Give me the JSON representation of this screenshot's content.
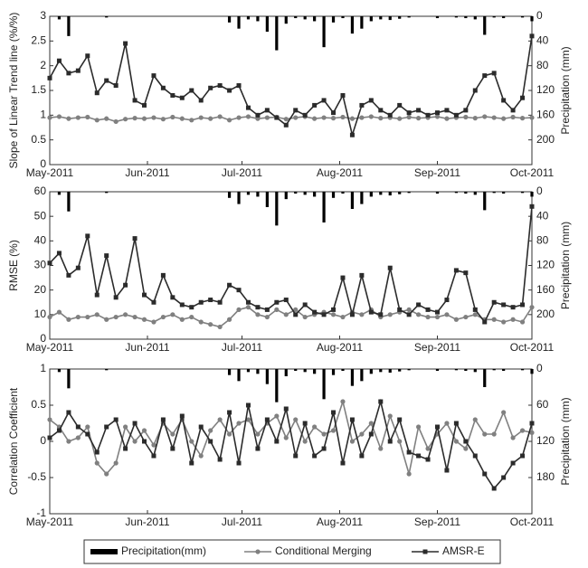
{
  "chart_data": [
    {
      "type": "line",
      "ylabel": "Slope of Linear Trend line (%/%)",
      "y2label": "Precipitation (mm)",
      "xlim": [
        0,
        153
      ],
      "xticks": [
        {
          "value": 0,
          "label": "May-2011"
        },
        {
          "value": 31,
          "label": "Jun-2011"
        },
        {
          "value": 61,
          "label": "Jul-2011"
        },
        {
          "value": 92,
          "label": "Aug-2011"
        },
        {
          "value": 123,
          "label": "Sep-2011"
        },
        {
          "value": 153,
          "label": "Oct-2011"
        }
      ],
      "ylim": [
        0,
        3
      ],
      "yticks": [
        0,
        0.5,
        1,
        1.5,
        2,
        2.5,
        3
      ],
      "y2lim": [
        240,
        0
      ],
      "y2ticks": [
        0,
        40,
        80,
        120,
        160,
        200
      ],
      "x": [
        0,
        3,
        6,
        9,
        12,
        15,
        18,
        21,
        24,
        27,
        30,
        33,
        36,
        39,
        42,
        45,
        48,
        51,
        54,
        57,
        60,
        63,
        66,
        69,
        72,
        75,
        78,
        81,
        84,
        87,
        90,
        93,
        96,
        99,
        102,
        105,
        108,
        111,
        114,
        117,
        120,
        123,
        126,
        129,
        132,
        135,
        138,
        141,
        144,
        147,
        150,
        153
      ],
      "series": [
        {
          "name": "Precipitation(mm)",
          "type": "bar",
          "axis": "y2",
          "color": "#000000",
          "values": [
            0,
            5,
            32,
            0,
            0,
            0,
            2,
            0,
            0,
            0,
            0,
            0,
            0,
            0,
            0,
            0,
            0,
            0,
            0,
            10,
            20,
            5,
            8,
            25,
            55,
            12,
            3,
            5,
            8,
            50,
            10,
            3,
            28,
            20,
            8,
            5,
            6,
            4,
            2,
            0,
            0,
            3,
            0,
            2,
            3,
            5,
            30,
            2,
            3,
            0,
            2,
            8
          ]
        },
        {
          "name": "Conditional Merging",
          "type": "line",
          "marker": "circle",
          "color": "#808080",
          "values": [
            0.95,
            0.97,
            0.93,
            0.95,
            0.96,
            0.9,
            0.93,
            0.87,
            0.92,
            0.94,
            0.93,
            0.95,
            0.92,
            0.96,
            0.93,
            0.9,
            0.95,
            0.93,
            0.97,
            0.9,
            0.95,
            0.97,
            0.93,
            0.95,
            0.96,
            0.92,
            0.95,
            0.97,
            0.93,
            0.95,
            0.94,
            0.96,
            0.93,
            0.95,
            0.97,
            0.94,
            0.95,
            0.93,
            0.96,
            0.94,
            0.95,
            0.97,
            0.93,
            0.95,
            0.96,
            0.94,
            0.97,
            0.95,
            0.93,
            0.96,
            0.94,
            0.95
          ]
        },
        {
          "name": "AMSR-E",
          "type": "line",
          "marker": "square",
          "color": "#2b2b2b",
          "values": [
            1.75,
            2.1,
            1.85,
            1.9,
            2.2,
            1.45,
            1.7,
            1.6,
            2.45,
            1.3,
            1.2,
            1.8,
            1.55,
            1.4,
            1.35,
            1.5,
            1.3,
            1.55,
            1.6,
            1.5,
            1.6,
            1.15,
            1.0,
            1.1,
            0.95,
            0.8,
            1.1,
            1.0,
            1.2,
            1.3,
            1.05,
            1.4,
            0.6,
            1.2,
            1.3,
            1.1,
            1.0,
            1.2,
            1.05,
            1.1,
            1.0,
            1.05,
            1.1,
            1.0,
            1.1,
            1.5,
            1.8,
            1.85,
            1.3,
            1.1,
            1.35,
            2.6
          ]
        }
      ]
    },
    {
      "type": "line",
      "ylabel": "RMSE (%)",
      "y2label": "Precipitation (mm)",
      "xlim": [
        0,
        153
      ],
      "xticks": [
        {
          "value": 0,
          "label": "May-2011"
        },
        {
          "value": 31,
          "label": "Jun-2011"
        },
        {
          "value": 61,
          "label": "Jul-2011"
        },
        {
          "value": 92,
          "label": "Aug-2011"
        },
        {
          "value": 123,
          "label": "Sep-2011"
        },
        {
          "value": 153,
          "label": "Oct-2011"
        }
      ],
      "ylim": [
        0,
        60
      ],
      "yticks": [
        0,
        10,
        20,
        30,
        40,
        50,
        60
      ],
      "y2lim": [
        240,
        0
      ],
      "y2ticks": [
        0,
        40,
        80,
        120,
        160,
        200
      ],
      "x": [
        0,
        3,
        6,
        9,
        12,
        15,
        18,
        21,
        24,
        27,
        30,
        33,
        36,
        39,
        42,
        45,
        48,
        51,
        54,
        57,
        60,
        63,
        66,
        69,
        72,
        75,
        78,
        81,
        84,
        87,
        90,
        93,
        96,
        99,
        102,
        105,
        108,
        111,
        114,
        117,
        120,
        123,
        126,
        129,
        132,
        135,
        138,
        141,
        144,
        147,
        150,
        153
      ],
      "series": [
        {
          "type": "bar",
          "axis": "y2",
          "color": "#000000",
          "values": [
            0,
            5,
            32,
            0,
            0,
            0,
            2,
            0,
            0,
            0,
            0,
            0,
            0,
            0,
            0,
            0,
            0,
            0,
            0,
            10,
            20,
            5,
            8,
            25,
            55,
            12,
            3,
            5,
            8,
            50,
            10,
            3,
            28,
            20,
            8,
            5,
            6,
            4,
            2,
            0,
            0,
            3,
            0,
            2,
            3,
            5,
            30,
            2,
            3,
            0,
            2,
            8
          ]
        },
        {
          "type": "line",
          "marker": "circle",
          "color": "#808080",
          "values": [
            9,
            11,
            8,
            9,
            9,
            10,
            8,
            9,
            10,
            9,
            8,
            7,
            9,
            10,
            8,
            9,
            7,
            6,
            5,
            8,
            12,
            13,
            10,
            9,
            12,
            10,
            12,
            9,
            10,
            11,
            10,
            9,
            11,
            10,
            12,
            9,
            10,
            11,
            12,
            10,
            9,
            9,
            10,
            8,
            9,
            10,
            8,
            8,
            7,
            8,
            7,
            13
          ]
        },
        {
          "type": "line",
          "marker": "square",
          "color": "#2b2b2b",
          "values": [
            31,
            35,
            26,
            29,
            42,
            18,
            34,
            17,
            22,
            41,
            18,
            15,
            26,
            17,
            14,
            13,
            15,
            16,
            15,
            22,
            20,
            15,
            13,
            12,
            15,
            16,
            10,
            14,
            11,
            10,
            12,
            25,
            10,
            26,
            11,
            10,
            29,
            12,
            10,
            14,
            12,
            11,
            16,
            28,
            27,
            12,
            7,
            15,
            14,
            13,
            14,
            54
          ]
        }
      ]
    },
    {
      "type": "line",
      "ylabel": "Correlation Coefficient",
      "y2label": "Precipitation (mm)",
      "xlim": [
        0,
        153
      ],
      "xticks": [
        {
          "value": 0,
          "label": "May-2011"
        },
        {
          "value": 31,
          "label": "Jun-2011"
        },
        {
          "value": 61,
          "label": "Jul-2011"
        },
        {
          "value": 92,
          "label": "Aug-2011"
        },
        {
          "value": 123,
          "label": "Sep-2011"
        },
        {
          "value": 153,
          "label": "Oct-2011"
        }
      ],
      "ylim": [
        -1,
        1
      ],
      "yticks": [
        -1,
        -0.5,
        0,
        0.5,
        1
      ],
      "y2lim": [
        240,
        0
      ],
      "y2ticks": [
        0,
        60,
        120,
        180
      ],
      "x": [
        0,
        3,
        6,
        9,
        12,
        15,
        18,
        21,
        24,
        27,
        30,
        33,
        36,
        39,
        42,
        45,
        48,
        51,
        54,
        57,
        60,
        63,
        66,
        69,
        72,
        75,
        78,
        81,
        84,
        87,
        90,
        93,
        96,
        99,
        102,
        105,
        108,
        111,
        114,
        117,
        120,
        123,
        126,
        129,
        132,
        135,
        138,
        141,
        144,
        147,
        150,
        153
      ],
      "series": [
        {
          "type": "bar",
          "axis": "y2",
          "color": "#000000",
          "values": [
            0,
            5,
            32,
            0,
            0,
            0,
            2,
            0,
            0,
            0,
            0,
            0,
            0,
            0,
            0,
            0,
            0,
            0,
            0,
            10,
            20,
            5,
            8,
            25,
            55,
            12,
            3,
            5,
            8,
            50,
            10,
            3,
            28,
            20,
            8,
            5,
            6,
            4,
            2,
            0,
            0,
            3,
            0,
            2,
            3,
            5,
            30,
            2,
            3,
            0,
            2,
            8
          ]
        },
        {
          "type": "line",
          "marker": "circle",
          "color": "#808080",
          "values": [
            0.3,
            0.2,
            0.0,
            0.05,
            0.2,
            -0.3,
            -0.45,
            -0.3,
            0.2,
            0.0,
            0.15,
            -0.05,
            0.25,
            0.1,
            0.3,
            0.0,
            -0.2,
            0.15,
            0.3,
            0.1,
            0.25,
            0.3,
            0.1,
            0.25,
            0.35,
            0.05,
            0.3,
            0.0,
            0.2,
            0.1,
            0.15,
            0.55,
            0.0,
            0.1,
            0.25,
            -0.1,
            0.35,
            0.0,
            -0.45,
            0.2,
            -0.1,
            0.1,
            0.25,
            0.0,
            -0.1,
            0.3,
            0.1,
            0.1,
            0.4,
            0.05,
            0.15,
            0.12
          ]
        },
        {
          "type": "line",
          "marker": "square",
          "color": "#2b2b2b",
          "values": [
            0.05,
            0.15,
            0.4,
            0.2,
            0.1,
            -0.15,
            0.2,
            0.3,
            -0.1,
            0.25,
            0.0,
            -0.2,
            0.3,
            -0.1,
            0.35,
            -0.3,
            0.2,
            0.0,
            -0.25,
            0.4,
            -0.3,
            0.5,
            -0.1,
            0.3,
            0.0,
            0.45,
            -0.2,
            0.25,
            -0.2,
            -0.1,
            0.4,
            -0.3,
            0.3,
            -0.2,
            0.1,
            0.55,
            0.0,
            0.3,
            -0.15,
            -0.2,
            -0.25,
            0.2,
            -0.4,
            0.25,
            0.0,
            -0.2,
            -0.45,
            -0.65,
            -0.5,
            -0.3,
            -0.2,
            0.25
          ]
        }
      ]
    }
  ]
}
